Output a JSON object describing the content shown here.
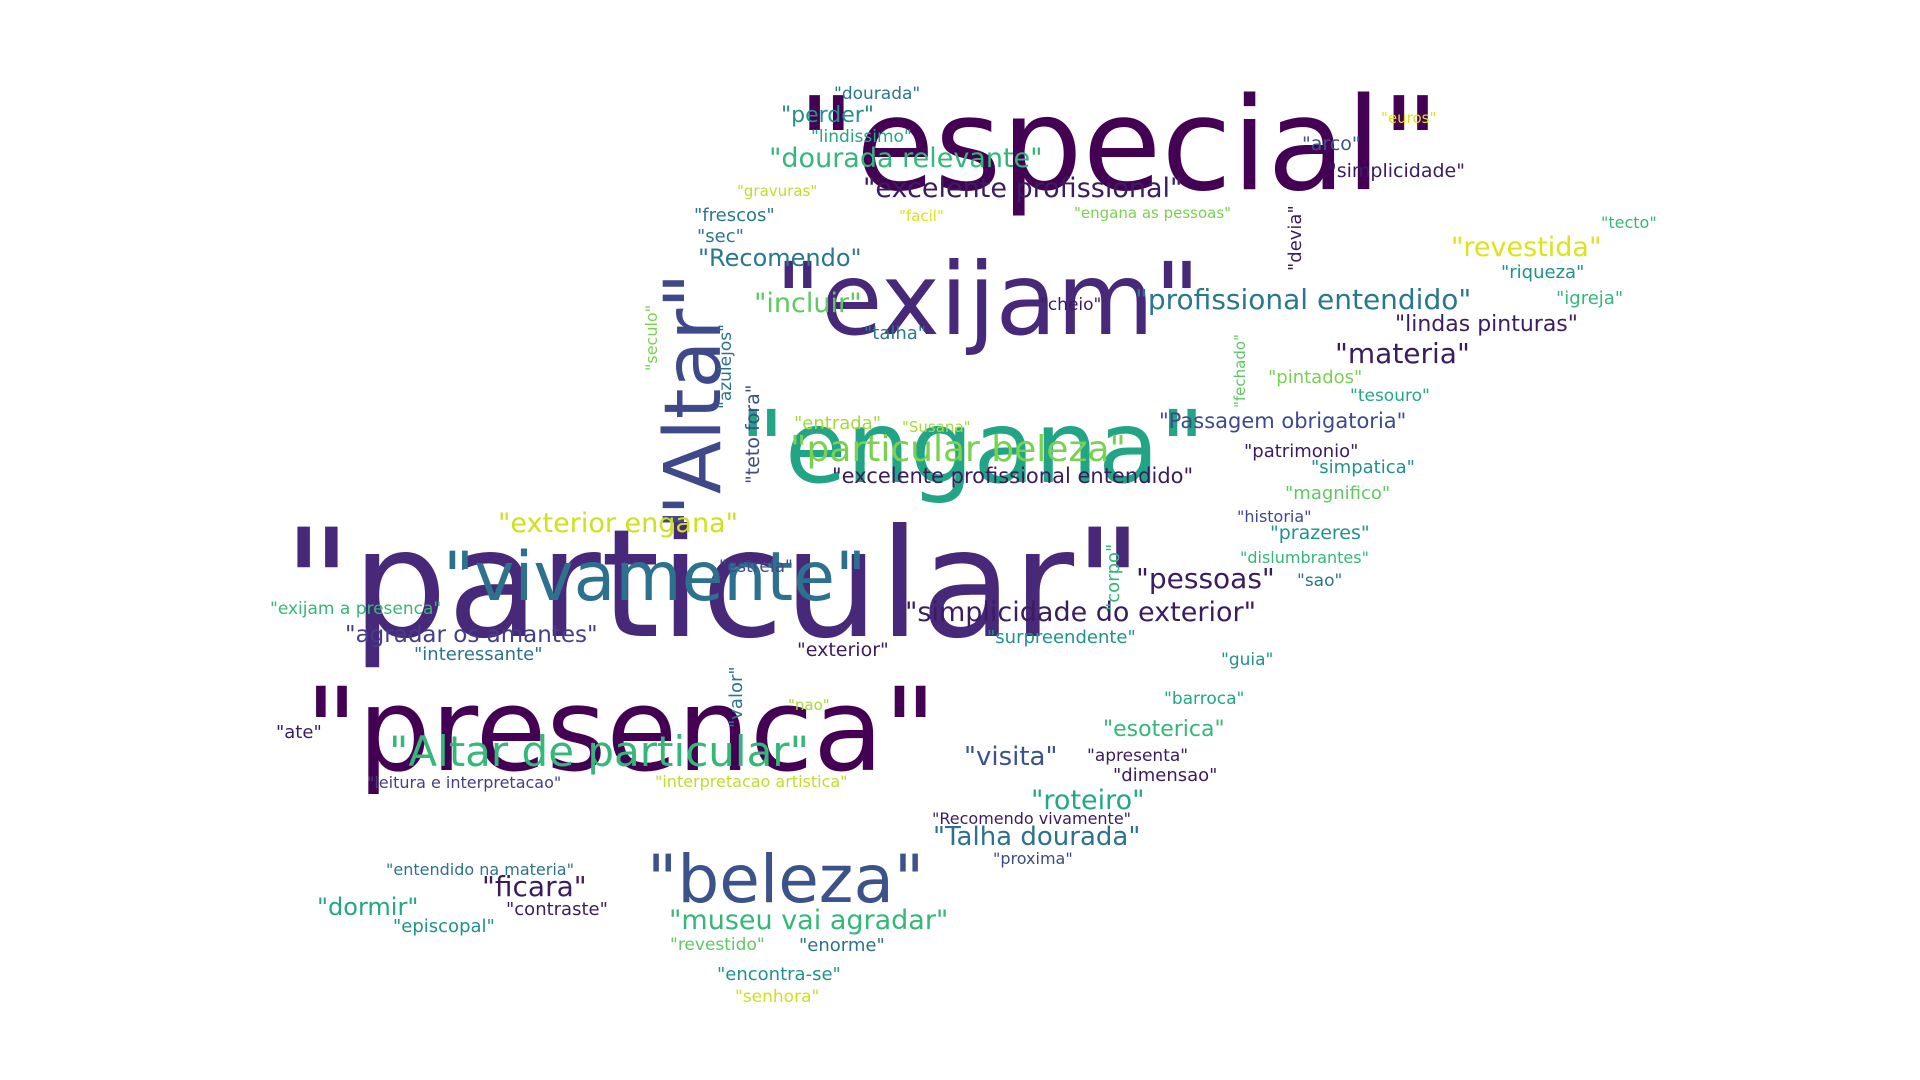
{
  "words": [
    {
      "id": "particular",
      "text": "\"particular\"",
      "color": "#482878"
    },
    {
      "id": "especial",
      "text": "\"especial\"",
      "color": "#440154"
    },
    {
      "id": "presenca",
      "text": "\"presenca\"",
      "color": "#440154"
    },
    {
      "id": "exijam",
      "text": "\"exijam\"",
      "color": "#482878"
    },
    {
      "id": "engana",
      "text": "\"engana\"",
      "color": "#21a585"
    },
    {
      "id": "altar",
      "text": "\"Altar\"",
      "color": "#3e4989"
    },
    {
      "id": "vivamente",
      "text": "\"vivamente\"",
      "color": "#2c728e"
    },
    {
      "id": "beleza",
      "text": "\"beleza\"",
      "color": "#3b528b"
    },
    {
      "id": "altar-de-particular",
      "text": "\"Altar de particular\"",
      "color": "#35b779"
    },
    {
      "id": "particular-beleza",
      "text": "\"particular beleza\"",
      "color": "#7ad151"
    },
    {
      "id": "profissional-entendido",
      "text": "\"profissional entendido\"",
      "color": "#2a788e"
    },
    {
      "id": "simplicidade-do-exterior",
      "text": "\"simplicidade do exterior\"",
      "color": "#3b1c60"
    },
    {
      "id": "excelente-profissional",
      "text": "\"excelente profissional\"",
      "color": "#3b1c60"
    },
    {
      "id": "dourada-relevante",
      "text": "\"dourada relevante\"",
      "color": "#35b779"
    },
    {
      "id": "exterior-engana",
      "text": "\"exterior engana\"",
      "color": "#cde11d"
    },
    {
      "id": "museu-vai-agradar",
      "text": "\"museu vai agradar\"",
      "color": "#35b779"
    },
    {
      "id": "talha-dourada",
      "text": "\"Talha dourada\"",
      "color": "#2c728e"
    },
    {
      "id": "agradar-os-amantes",
      "text": "\"agradar os amantes\"",
      "color": "#433e85"
    },
    {
      "id": "revestida",
      "text": "\"revestida\"",
      "color": "#dde318"
    },
    {
      "id": "materia",
      "text": "\"materia\"",
      "color": "#3b1c60"
    },
    {
      "id": "pessoas",
      "text": "\"pessoas\"",
      "color": "#3b1c60"
    },
    {
      "id": "ficara",
      "text": "\"ficara\"",
      "color": "#3b1c60"
    },
    {
      "id": "roteiro",
      "text": "\"roteiro\"",
      "color": "#22a884"
    },
    {
      "id": "incluir",
      "text": "\"incluir\"",
      "color": "#5ec962"
    },
    {
      "id": "recomendo",
      "text": "\"Recomendo\"",
      "color": "#2a788e"
    },
    {
      "id": "lindas-pinturas",
      "text": "\"lindas pinturas\"",
      "color": "#3b1c60"
    },
    {
      "id": "excelente-profissional-entendido",
      "text": "\"excelente profissional entendido\"",
      "color": "#3b1c60"
    },
    {
      "id": "passagem-obrigatoria",
      "text": "\"Passagem obrigatoria\"",
      "color": "#3e4989"
    },
    {
      "id": "visita",
      "text": "\"visita\"",
      "color": "#3b528b"
    },
    {
      "id": "esoterica",
      "text": "\"esoterica\"",
      "color": "#35b779"
    },
    {
      "id": "dormir",
      "text": "\"dormir\"",
      "color": "#22a884"
    },
    {
      "id": "perder",
      "text": "\"perder\"",
      "color": "#21918c"
    },
    {
      "id": "simplicidade",
      "text": "\"simplicidade\"",
      "color": "#3b1c60"
    },
    {
      "id": "arco",
      "text": "\"arco\"",
      "color": "#3b528b"
    },
    {
      "id": "dourada",
      "text": "\"dourada\"",
      "color": "#2a788e"
    },
    {
      "id": "lindissimo",
      "text": "\"lindissimo\"",
      "color": "#22a884"
    },
    {
      "id": "euros",
      "text": "\"euros\"",
      "color": "#dde318"
    },
    {
      "id": "gravuras",
      "text": "\"gravuras\"",
      "color": "#bddf26"
    },
    {
      "id": "frescos",
      "text": "\"frescos\"",
      "color": "#2a788e"
    },
    {
      "id": "facil",
      "text": "\"facil\"",
      "color": "#dde318"
    },
    {
      "id": "engana-as-pessoas",
      "text": "\"engana as pessoas\"",
      "color": "#7ad151"
    },
    {
      "id": "tecto",
      "text": "\"tecto\"",
      "color": "#35b779"
    },
    {
      "id": "sec",
      "text": "\"sec\"",
      "color": "#2a788e"
    },
    {
      "id": "riqueza",
      "text": "\"riqueza\"",
      "color": "#21918c"
    },
    {
      "id": "igreja",
      "text": "\"igreja\"",
      "color": "#35b779"
    },
    {
      "id": "cheio",
      "text": "\"cheio\"",
      "color": "#3b1c60"
    },
    {
      "id": "talha",
      "text": "\"talha\"",
      "color": "#2a788e"
    },
    {
      "id": "pintados",
      "text": "\"pintados\"",
      "color": "#7ad151"
    },
    {
      "id": "tesouro",
      "text": "\"tesouro\"",
      "color": "#22a884"
    },
    {
      "id": "entrada",
      "text": "\"entrada\"",
      "color": "#a5db36"
    },
    {
      "id": "susana",
      "text": "\"Susana\"",
      "color": "#a5db36"
    },
    {
      "id": "patrimonio",
      "text": "\"patrimonio\"",
      "color": "#3b1c60"
    },
    {
      "id": "simpatica",
      "text": "\"simpatica\"",
      "color": "#21918c"
    },
    {
      "id": "magnifico",
      "text": "\"magnifico\"",
      "color": "#5ec962"
    },
    {
      "id": "historia",
      "text": "\"historia\"",
      "color": "#3e4989"
    },
    {
      "id": "prazeres",
      "text": "\"prazeres\"",
      "color": "#21918c"
    },
    {
      "id": "dislumbrantes",
      "text": "\"dislumbrantes\"",
      "color": "#35b779"
    },
    {
      "id": "estrela",
      "text": "\"estrela\"",
      "color": "#3e4989"
    },
    {
      "id": "sao",
      "text": "\"sao\"",
      "color": "#2c728e"
    },
    {
      "id": "exijam-a-presenca",
      "text": "\"exijam a presenca\"",
      "color": "#35b779"
    },
    {
      "id": "surpreendente",
      "text": "\"surpreendente\"",
      "color": "#21918c"
    },
    {
      "id": "interessante",
      "text": "\"interessante\"",
      "color": "#2c728e"
    },
    {
      "id": "exterior",
      "text": "\"exterior\"",
      "color": "#3b1c60"
    },
    {
      "id": "guia",
      "text": "\"guia\"",
      "color": "#21918c"
    },
    {
      "id": "barroca",
      "text": "\"barroca\"",
      "color": "#22a884"
    },
    {
      "id": "nao",
      "text": "\"nao\"",
      "color": "#a5db36"
    },
    {
      "id": "ate",
      "text": "\"ate\"",
      "color": "#3b1c60"
    },
    {
      "id": "leitura-e-interpretacao",
      "text": "\"leitura e interpretacao\"",
      "color": "#433e85"
    },
    {
      "id": "interpretacao-artistica",
      "text": "\"interpretacao artistica\"",
      "color": "#bddf26"
    },
    {
      "id": "apresenta",
      "text": "\"apresenta\"",
      "color": "#3b1c60"
    },
    {
      "id": "dimensao",
      "text": "\"dimensao\"",
      "color": "#3b1c60"
    },
    {
      "id": "recomendo-vivamente",
      "text": "\"Recomendo vivamente\"",
      "color": "#3b1c60"
    },
    {
      "id": "entendido-na-materia",
      "text": "\"entendido na materia\"",
      "color": "#2c728e"
    },
    {
      "id": "proxima",
      "text": "\"proxima\"",
      "color": "#3e4989"
    },
    {
      "id": "contraste",
      "text": "\"contraste\"",
      "color": "#3b1c60"
    },
    {
      "id": "episcopal",
      "text": "\"episcopal\"",
      "color": "#21918c"
    },
    {
      "id": "revestido",
      "text": "\"revestido\"",
      "color": "#5ec962"
    },
    {
      "id": "enorme",
      "text": "\"enorme\"",
      "color": "#2c728e"
    },
    {
      "id": "encontra-se",
      "text": "\"encontra-se\"",
      "color": "#21918c"
    },
    {
      "id": "senhora",
      "text": "\"senhora\"",
      "color": "#cde11d"
    },
    {
      "id": "seculo",
      "text": "\"seculo\"",
      "color": "#7ad151"
    },
    {
      "id": "azulejos",
      "text": "\"azulejos\"",
      "color": "#2c728e"
    },
    {
      "id": "teto-fora",
      "text": "\"teto fora\"",
      "color": "#3e4989"
    },
    {
      "id": "devia",
      "text": "\"devia\"",
      "color": "#3b1c60"
    },
    {
      "id": "fechado",
      "text": "\"fechado\"",
      "color": "#5ec962"
    },
    {
      "id": "corpo",
      "text": "\"corpo\"",
      "color": "#35b779"
    },
    {
      "id": "valor",
      "text": "\"valor\"",
      "color": "#2a788e"
    }
  ]
}
